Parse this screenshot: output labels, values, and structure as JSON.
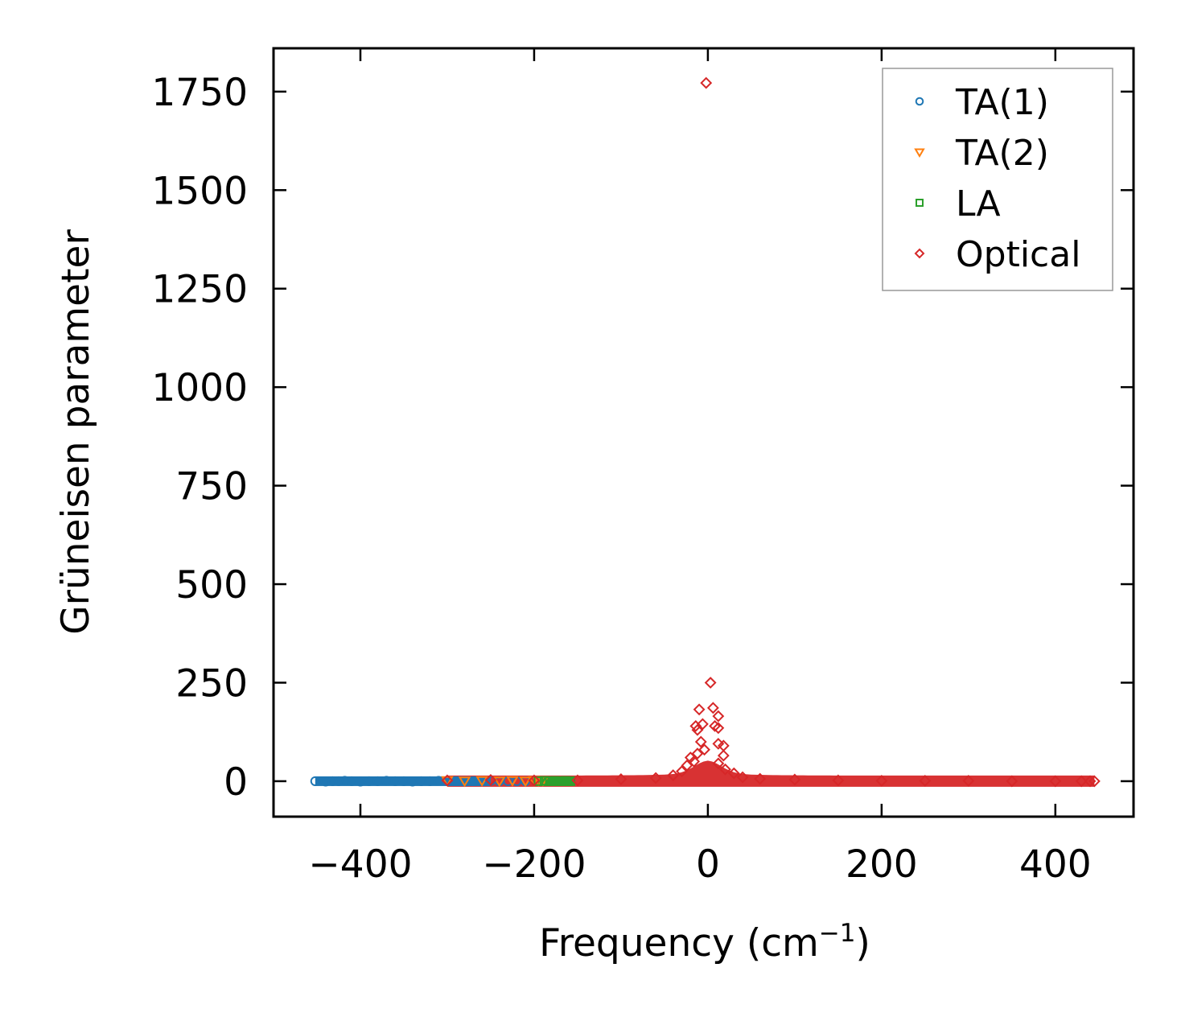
{
  "chart_data": {
    "type": "scatter",
    "title": "",
    "xlabel": "Frequency (cm",
    "xlabel_sup": "−1",
    "xlabel_close": ")",
    "ylabel": "Grüneisen parameter",
    "xlim": [
      -500,
      490
    ],
    "ylim": [
      -90,
      1860
    ],
    "xticks": [
      -400,
      -200,
      0,
      200,
      400
    ],
    "xtick_labels": [
      "−400",
      "−200",
      "0",
      "200",
      "400"
    ],
    "yticks": [
      0,
      250,
      500,
      750,
      1000,
      1250,
      1500,
      1750
    ],
    "ytick_labels": [
      "0",
      "250",
      "500",
      "750",
      "1000",
      "1250",
      "1500",
      "1750"
    ],
    "legend_position": "top-right",
    "series": [
      {
        "name": "TA(1)",
        "marker": "circle",
        "color": "#1f77b4",
        "points": [
          [
            -452,
            0
          ],
          [
            -440,
            -1
          ],
          [
            -432,
            0
          ],
          [
            -425,
            0
          ],
          [
            -418,
            1
          ],
          [
            -410,
            0
          ],
          [
            -400,
            -1
          ],
          [
            -390,
            0
          ],
          [
            -380,
            0
          ],
          [
            -370,
            1
          ],
          [
            -360,
            0
          ],
          [
            -350,
            0
          ],
          [
            -340,
            -1
          ],
          [
            -330,
            0
          ],
          [
            -320,
            0
          ],
          [
            -310,
            1
          ],
          [
            -300,
            0
          ],
          [
            -290,
            0
          ],
          [
            -280,
            -1
          ],
          [
            -270,
            0
          ],
          [
            -260,
            0
          ],
          [
            -250,
            1
          ],
          [
            -240,
            0
          ],
          [
            -230,
            0
          ],
          [
            -220,
            0
          ],
          [
            -210,
            0
          ]
        ]
      },
      {
        "name": "TA(2)",
        "marker": "triangle-down",
        "color": "#ff7f0e",
        "points": [
          [
            -300,
            2
          ],
          [
            -280,
            1
          ],
          [
            -260,
            2
          ],
          [
            -240,
            1
          ],
          [
            -225,
            2
          ],
          [
            -210,
            1
          ],
          [
            -200,
            2
          ],
          [
            -195,
            1
          ],
          [
            -190,
            2
          ]
        ]
      },
      {
        "name": "LA",
        "marker": "square",
        "color": "#2ca02c",
        "points": [
          [
            -195,
            0
          ],
          [
            -188,
            1
          ],
          [
            -182,
            0
          ],
          [
            -176,
            1
          ],
          [
            -170,
            0
          ],
          [
            -164,
            1
          ],
          [
            -158,
            0
          ]
        ]
      },
      {
        "name": "Optical",
        "marker": "diamond",
        "color": "#d62728",
        "points": [
          [
            -2,
            1772
          ],
          [
            3,
            250
          ],
          [
            -10,
            182
          ],
          [
            6,
            186
          ],
          [
            12,
            165
          ],
          [
            -14,
            140
          ],
          [
            -6,
            145
          ],
          [
            8,
            140
          ],
          [
            12,
            135
          ],
          [
            -12,
            130
          ],
          [
            -8,
            100
          ],
          [
            12,
            95
          ],
          [
            18,
            90
          ],
          [
            -4,
            80
          ],
          [
            -12,
            70
          ],
          [
            18,
            65
          ],
          [
            -20,
            60
          ],
          [
            -16,
            50
          ],
          [
            -24,
            40
          ],
          [
            12,
            45
          ],
          [
            20,
            30
          ],
          [
            -30,
            25
          ],
          [
            30,
            20
          ],
          [
            -40,
            15
          ],
          [
            40,
            10
          ],
          [
            -60,
            8
          ],
          [
            60,
            6
          ],
          [
            -100,
            5
          ],
          [
            100,
            4
          ],
          [
            -300,
            2
          ],
          [
            -250,
            3
          ],
          [
            -200,
            2
          ],
          [
            -150,
            2
          ],
          [
            150,
            2
          ],
          [
            200,
            1
          ],
          [
            250,
            1
          ],
          [
            300,
            1
          ],
          [
            350,
            0
          ],
          [
            400,
            0
          ],
          [
            430,
            0
          ],
          [
            440,
            0
          ],
          [
            445,
            0
          ]
        ]
      }
    ]
  }
}
